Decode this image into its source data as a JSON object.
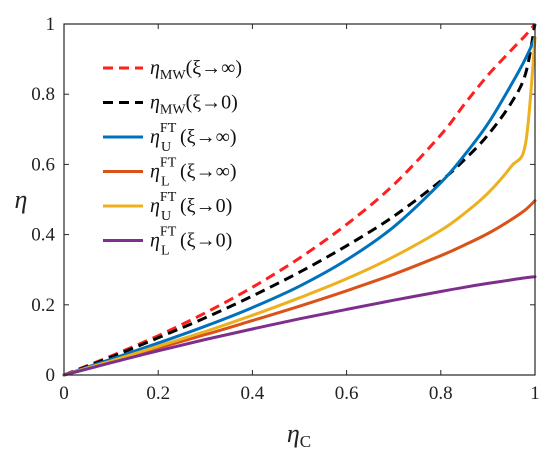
{
  "chart_data": {
    "type": "line",
    "xlabel": {
      "symbol": "η",
      "subscript": "C"
    },
    "ylabel": {
      "symbol": "η"
    },
    "xlim": [
      0,
      1
    ],
    "ylim": [
      0,
      1
    ],
    "xticks": [
      "0",
      "0.2",
      "0.4",
      "0.6",
      "0.8",
      "1"
    ],
    "yticks": [
      "0",
      "0.2",
      "0.4",
      "0.6",
      "0.8",
      "1"
    ],
    "grid": false,
    "legend_placement": "top-left",
    "x": [
      0,
      0.1,
      0.2,
      0.3,
      0.4,
      0.5,
      0.6,
      0.7,
      0.8,
      0.85,
      0.9,
      0.95,
      0.98,
      1.0
    ],
    "series": [
      {
        "name": "η_MW(ξ→∞)",
        "legend": {
          "symbol": "η",
          "sub": "MW",
          "sup": "",
          "arg": "(ξ→∞)"
        },
        "color": "#ff1f1f",
        "dash": true,
        "values": [
          0,
          0.054,
          0.112,
          0.177,
          0.25,
          0.333,
          0.429,
          0.542,
          0.684,
          0.771,
          0.854,
          0.926,
          0.968,
          1.0
        ]
      },
      {
        "name": "η_MW(ξ→0)",
        "legend": {
          "symbol": "η",
          "sub": "MW",
          "sup": "",
          "arg": "(ξ→0)"
        },
        "color": "#000000",
        "dash": true,
        "values": [
          0,
          0.051,
          0.106,
          0.163,
          0.225,
          0.293,
          0.368,
          0.452,
          0.553,
          0.613,
          0.684,
          0.776,
          0.859,
          1.0
        ]
      },
      {
        "name": "η_U^FT(ξ→∞)",
        "legend": {
          "symbol": "η",
          "sub": "U",
          "sup": "FT",
          "arg": "(ξ→∞)"
        },
        "color": "#0072bd",
        "dash": false,
        "values": [
          0,
          0.045,
          0.091,
          0.139,
          0.192,
          0.253,
          0.328,
          0.422,
          0.548,
          0.626,
          0.716,
          0.828,
          0.902,
          0.96
        ]
      },
      {
        "name": "η_L^FT(ξ→∞)",
        "legend": {
          "symbol": "η",
          "sub": "L",
          "sup": "FT",
          "arg": "(ξ→∞)"
        },
        "color": "#d95319",
        "dash": false,
        "values": [
          0,
          0.039,
          0.077,
          0.115,
          0.155,
          0.196,
          0.24,
          0.287,
          0.34,
          0.37,
          0.403,
          0.443,
          0.471,
          0.497
        ]
      },
      {
        "name": "η_U^FT(ξ→0)",
        "legend": {
          "symbol": "η",
          "sub": "U",
          "sup": "FT",
          "arg": "(ξ→0)"
        },
        "color": "#edb120",
        "dash": false,
        "values": [
          0,
          0.04,
          0.082,
          0.124,
          0.17,
          0.22,
          0.274,
          0.337,
          0.412,
          0.46,
          0.518,
          0.595,
          0.66,
          0.96
        ]
      },
      {
        "name": "η_L^FT(ξ→0)",
        "legend": {
          "symbol": "η",
          "sub": "L",
          "sup": "FT",
          "arg": "(ξ→0)"
        },
        "color": "#7e2f8e",
        "dash": false,
        "values": [
          0,
          0.035,
          0.069,
          0.101,
          0.131,
          0.16,
          0.187,
          0.213,
          0.238,
          0.25,
          0.261,
          0.271,
          0.277,
          0.28
        ]
      }
    ]
  }
}
